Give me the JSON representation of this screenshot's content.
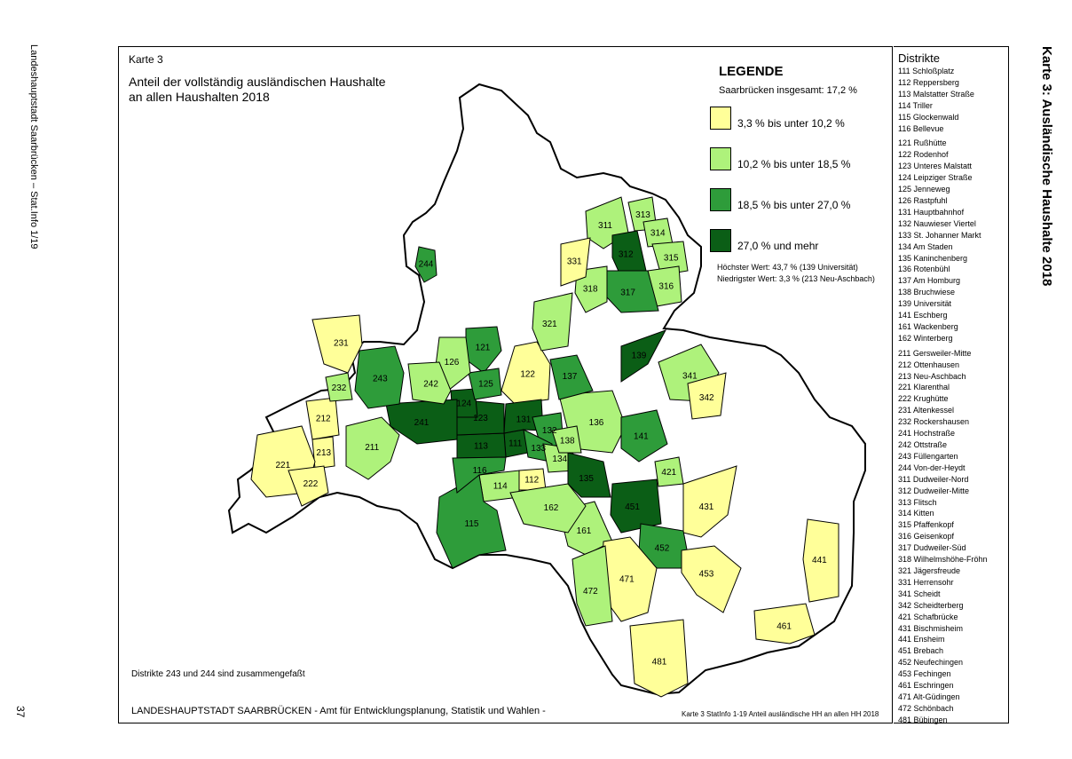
{
  "side_left": "Landeshauptstadt Saarbrücken – Stat.Info 1/19",
  "page_number": "37",
  "side_right": "Karte 3: Ausländische Haushalte 2018",
  "karte": "Karte 3",
  "title_line1": "Anteil der vollständig ausländischen Haushalte",
  "title_line2": "an allen Haushalten 2018",
  "legend": {
    "title": "LEGENDE",
    "total": "Saarbrücken insgesamt: 17,2 %",
    "items": [
      {
        "label": "3,3 % bis unter 10,2 %",
        "color": "#ffff99"
      },
      {
        "label": "10,2 % bis unter 18,5 %",
        "color": "#aef27b"
      },
      {
        "label": "18,5 % bis unter 27,0 %",
        "color": "#2e9c3a"
      },
      {
        "label": "27,0 % und mehr",
        "color": "#0b5e16"
      }
    ],
    "max": "Höchster Wert: 43,7 % (139 Universität)",
    "min": "Niedrigster Wert: 3,3 % (213 Neu-Aschbach)"
  },
  "note": "Distrikte 243 und 244 sind zusammengefaßt",
  "footer": "LANDESHAUPTSTADT SAARBRÜCKEN - Amt für Entwicklungsplanung, Statistik und Wahlen -",
  "footer_small": "Karte 3 StatInfo 1-19 Anteil ausländische HH an allen HH 2018",
  "districts_title": "Distrikte",
  "districts": [
    "111 Schloßplatz",
    "112 Reppersberg",
    "113 Malstatter Straße",
    "114 Triller",
    "115 Glockenwald",
    "116 Bellevue",
    "121 Rußhütte",
    "122 Rodenhof",
    "123 Unteres Malstatt",
    "124 Leipziger Straße",
    "125 Jenneweg",
    "126 Rastpfuhl",
    "131 Hauptbahnhof",
    "132 Nauwieser Viertel",
    "133 St. Johanner Markt",
    "134 Am Staden",
    "135 Kaninchenberg",
    "136 Rotenbühl",
    "137 Am Homburg",
    "138 Bruchwiese",
    "139 Universität",
    "141 Eschberg",
    "161 Wackenberg",
    "162 Winterberg",
    "211 Gersweiler-Mitte",
    "212 Ottenhausen",
    "213 Neu-Aschbach",
    "221 Klarenthal",
    "222 Krughütte",
    "231 Altenkessel",
    "232 Rockershausen",
    "241 Hochstraße",
    "242 Ottstraße",
    "243 Füllengarten",
    "244 Von-der-Heydt",
    "311 Dudweiler-Nord",
    "312 Dudweiler-Mitte",
    "313 Flitsch",
    "314 Kitten",
    "315 Pfaffenkopf",
    "316 Geisenkopf",
    "317 Dudweiler-Süd",
    "318 Wilhelmshöhe-Fröhn",
    "321 Jägersfreude",
    "331 Herrensohr",
    "341 Scheidt",
    "342 Scheidterberg",
    "421 Schafbrücke",
    "431 Bischmisheim",
    "441 Ensheim",
    "451 Brebach",
    "452 Neufechingen",
    "453 Fechingen",
    "461 Eschringen",
    "471 Alt-Güdingen",
    "472 Schönbach",
    "481 Bübingen"
  ],
  "map_labels": [
    {
      "id": "111",
      "cls": 4
    },
    {
      "id": "112",
      "cls": 1
    },
    {
      "id": "113",
      "cls": 4
    },
    {
      "id": "114",
      "cls": 2
    },
    {
      "id": "115",
      "cls": 3
    },
    {
      "id": "116",
      "cls": 3
    },
    {
      "id": "121",
      "cls": 3
    },
    {
      "id": "122",
      "cls": 1
    },
    {
      "id": "123",
      "cls": 4
    },
    {
      "id": "124",
      "cls": 4
    },
    {
      "id": "125",
      "cls": 3
    },
    {
      "id": "126",
      "cls": 2
    },
    {
      "id": "131",
      "cls": 4
    },
    {
      "id": "132",
      "cls": 3
    },
    {
      "id": "133",
      "cls": 3
    },
    {
      "id": "134",
      "cls": 2
    },
    {
      "id": "135",
      "cls": 4
    },
    {
      "id": "136",
      "cls": 2
    },
    {
      "id": "137",
      "cls": 3
    },
    {
      "id": "138",
      "cls": 2
    },
    {
      "id": "139",
      "cls": 4
    },
    {
      "id": "141",
      "cls": 3
    },
    {
      "id": "161",
      "cls": 2
    },
    {
      "id": "162",
      "cls": 2
    },
    {
      "id": "211",
      "cls": 2
    },
    {
      "id": "212",
      "cls": 1
    },
    {
      "id": "213",
      "cls": 1
    },
    {
      "id": "221",
      "cls": 1
    },
    {
      "id": "222",
      "cls": 1
    },
    {
      "id": "231",
      "cls": 1
    },
    {
      "id": "232",
      "cls": 2
    },
    {
      "id": "241",
      "cls": 4
    },
    {
      "id": "242",
      "cls": 2
    },
    {
      "id": "243",
      "cls": 3
    },
    {
      "id": "244",
      "cls": 3
    },
    {
      "id": "311",
      "cls": 2
    },
    {
      "id": "312",
      "cls": 4
    },
    {
      "id": "313",
      "cls": 2
    },
    {
      "id": "314",
      "cls": 2
    },
    {
      "id": "315",
      "cls": 2
    },
    {
      "id": "316",
      "cls": 2
    },
    {
      "id": "317",
      "cls": 3
    },
    {
      "id": "318",
      "cls": 2
    },
    {
      "id": "321",
      "cls": 2
    },
    {
      "id": "331",
      "cls": 1
    },
    {
      "id": "341",
      "cls": 2
    },
    {
      "id": "342",
      "cls": 1
    },
    {
      "id": "421",
      "cls": 2
    },
    {
      "id": "431",
      "cls": 1
    },
    {
      "id": "441",
      "cls": 1
    },
    {
      "id": "451",
      "cls": 4
    },
    {
      "id": "452",
      "cls": 3
    },
    {
      "id": "453",
      "cls": 1
    },
    {
      "id": "461",
      "cls": 1
    },
    {
      "id": "471",
      "cls": 1
    },
    {
      "id": "472",
      "cls": 2
    },
    {
      "id": "481",
      "cls": 1
    }
  ]
}
